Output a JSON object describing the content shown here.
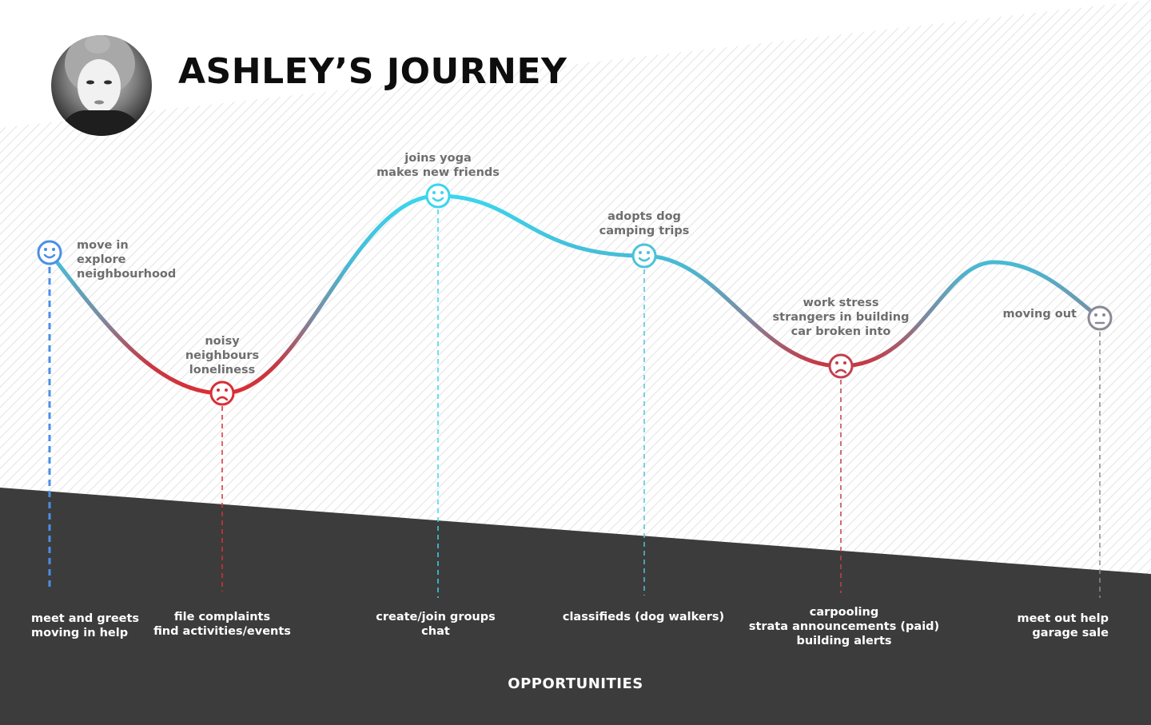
{
  "page": {
    "title": "ASHLEY’S JOURNEY",
    "footer_title": "OPPORTUNITIES"
  },
  "colors": {
    "dark_band": "#3c3c3c",
    "hatch": "#e3e3e3",
    "curve_blue": "#3ad6ee",
    "curve_red": "#d92e35",
    "curve_mid": "#6a90aa",
    "curve_gray": "#8a8a96"
  },
  "stages": [
    {
      "id": "move-in",
      "mood": "happy",
      "color": "#4a8fe6",
      "lines": [
        "move in",
        "explore",
        "neighbourhood"
      ],
      "opportunity_lines": [
        "meet and greets",
        "moving in help"
      ]
    },
    {
      "id": "noisy",
      "mood": "sad",
      "color": "#d92e35",
      "lines": [
        "noisy",
        "neighbours",
        "loneliness"
      ],
      "opportunity_lines": [
        "file complaints",
        "find activities/events"
      ]
    },
    {
      "id": "yoga",
      "mood": "happy",
      "color": "#3ad6ee",
      "lines": [
        "joins yoga",
        "makes new friends"
      ],
      "opportunity_lines": [
        "create/join groups",
        "chat"
      ]
    },
    {
      "id": "dog",
      "mood": "happy",
      "color": "#4cc3da",
      "lines": [
        "adopts dog",
        "camping trips"
      ],
      "opportunity_lines": [
        "classifieds (dog walkers)"
      ]
    },
    {
      "id": "stress",
      "mood": "sad",
      "color": "#c0414d",
      "lines": [
        "work stress",
        "strangers in building",
        "car broken into"
      ],
      "opportunity_lines": [
        "carpooling",
        "strata announcements (paid)",
        "building alerts"
      ]
    },
    {
      "id": "moving-out",
      "mood": "neutral",
      "color": "#8a8a96",
      "lines": [
        "moving out"
      ],
      "opportunity_lines": [
        "meet out help",
        "garage sale"
      ]
    }
  ]
}
